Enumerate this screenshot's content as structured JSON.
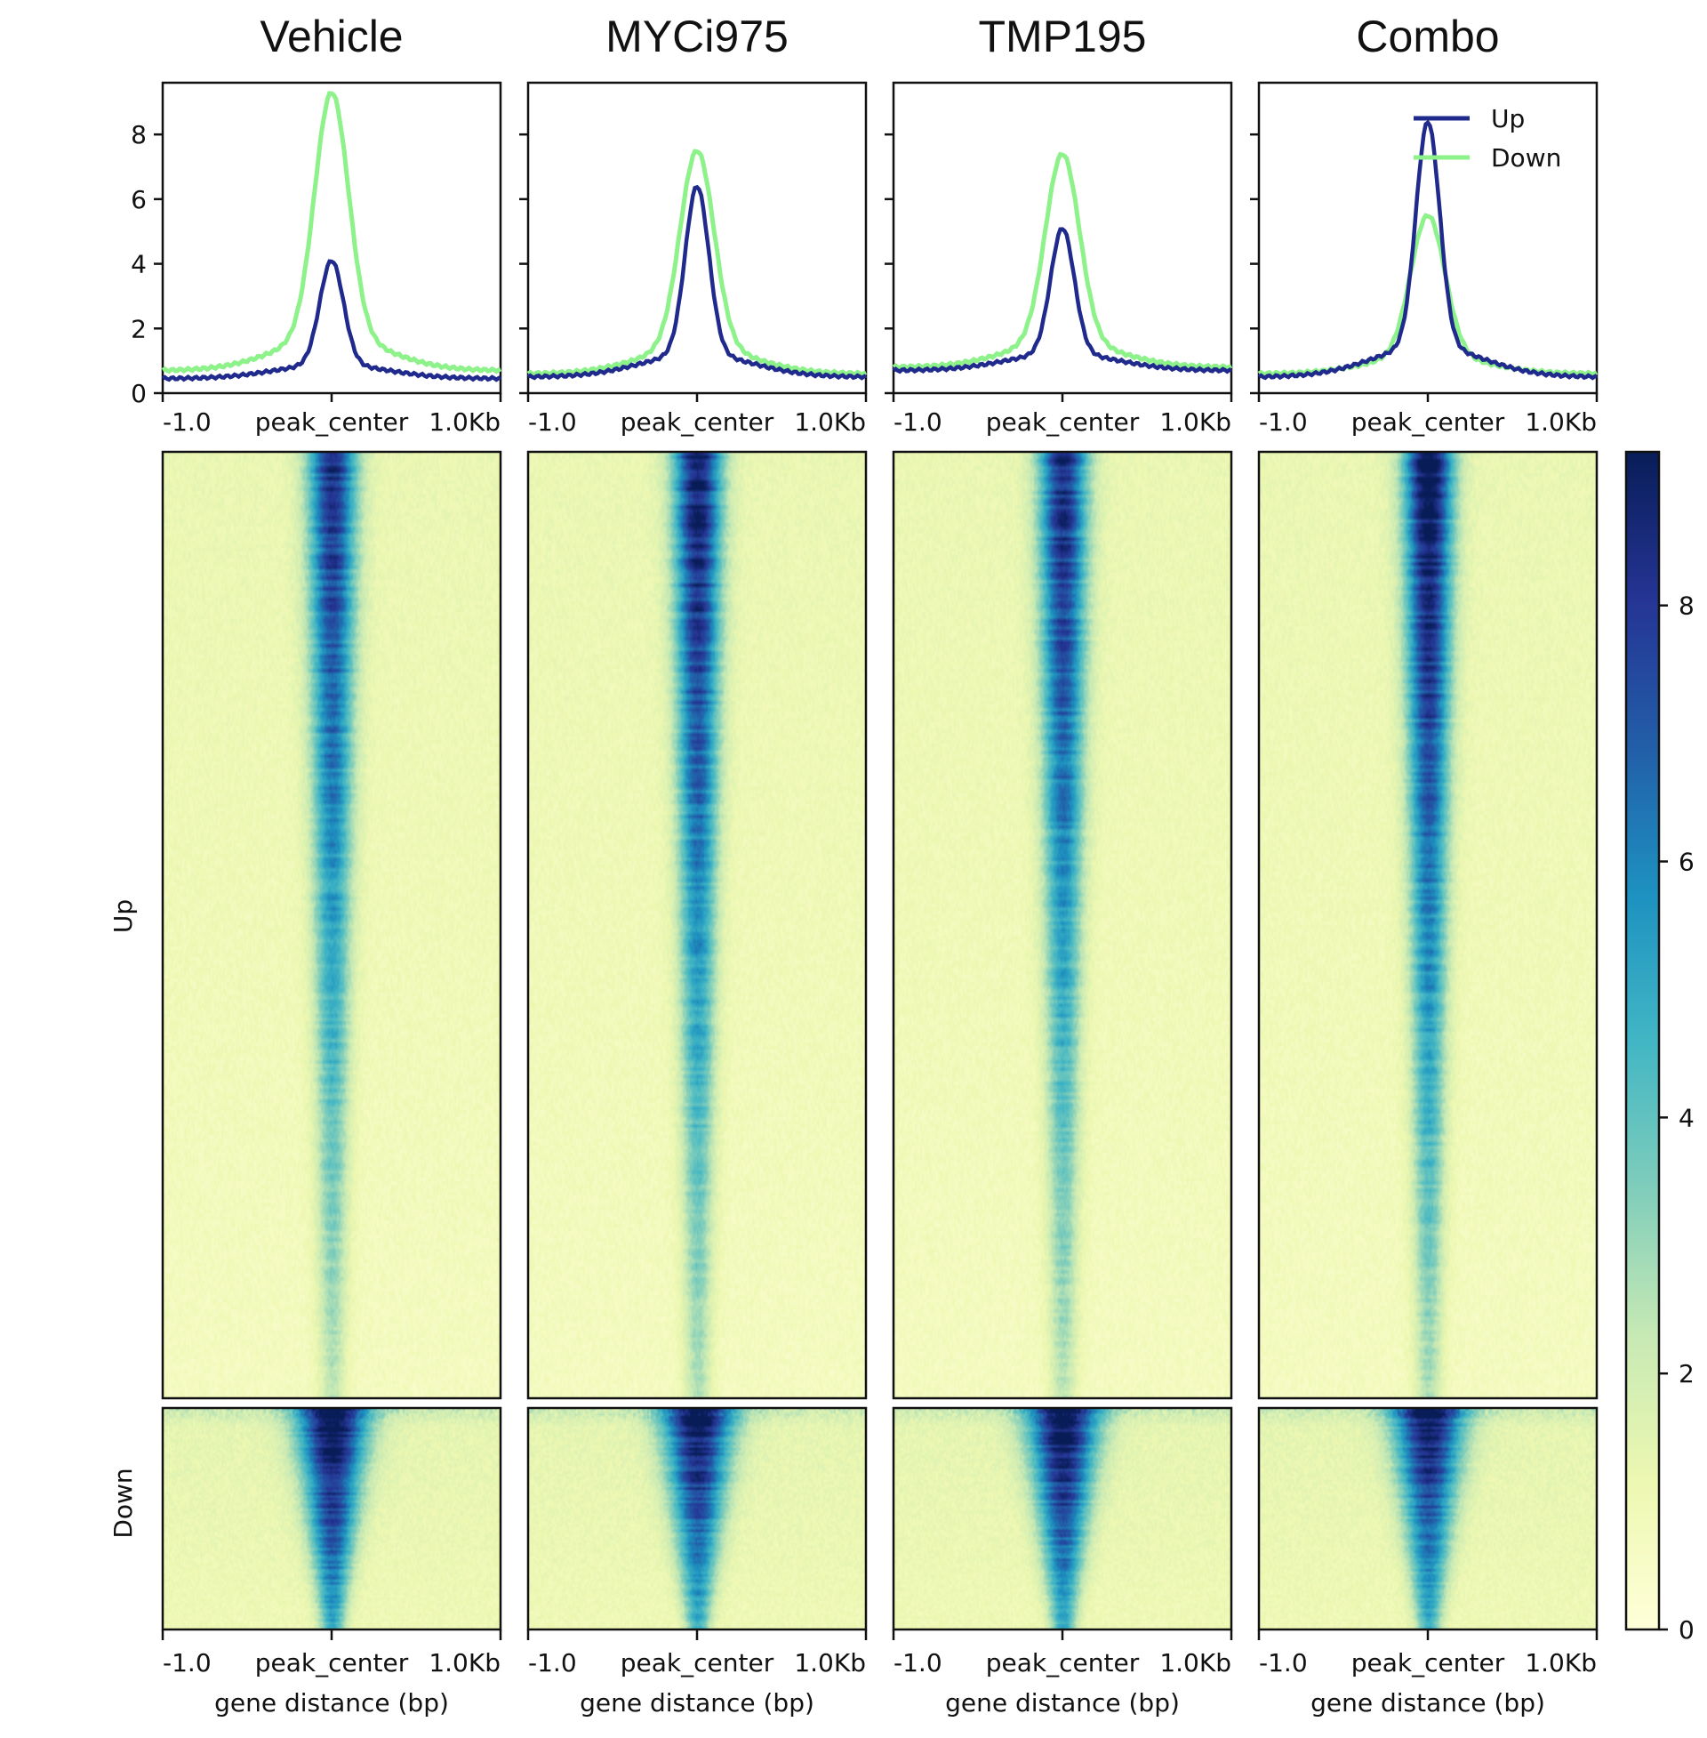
{
  "chart_data": {
    "type": "heatmap",
    "panels": [
      "Vehicle",
      "MYCi975",
      "TMP195",
      "Combo"
    ],
    "profile": {
      "type": "line",
      "ylim": [
        0,
        9.6
      ],
      "yticks": [
        0,
        2,
        4,
        6,
        8
      ],
      "x_tick_labels": [
        "-1.0",
        "peak_center",
        "1.0Kb"
      ],
      "legend": {
        "position": "top-right",
        "entries": [
          "Up",
          "Down"
        ]
      },
      "series": [
        {
          "name": "Up",
          "color": "#1f2a8c",
          "peak": [
            4.1,
            6.4,
            5.1,
            8.4
          ],
          "baseline": [
            0.45,
            0.5,
            0.7,
            0.5
          ]
        },
        {
          "name": "Down",
          "color": "#8ef28a",
          "peak": [
            9.3,
            7.5,
            7.4,
            5.5
          ],
          "baseline": [
            0.7,
            0.6,
            0.8,
            0.6
          ]
        }
      ]
    },
    "heatmap": {
      "groups": [
        "Up",
        "Down"
      ],
      "colormap": "YlGnBu",
      "colorbar": {
        "range": [
          0,
          9.2
        ],
        "ticks": [
          0,
          2,
          4,
          6,
          8
        ]
      },
      "x_tick_labels": [
        "-1.0",
        "peak_center",
        "1.0Kb"
      ],
      "xlabel": "gene distance (bp)",
      "up_peak_intensity": [
        7.8,
        8.6,
        8.0,
        9.2
      ],
      "down_peak_intensity": [
        9.1,
        8.4,
        8.7,
        8.2
      ]
    }
  }
}
